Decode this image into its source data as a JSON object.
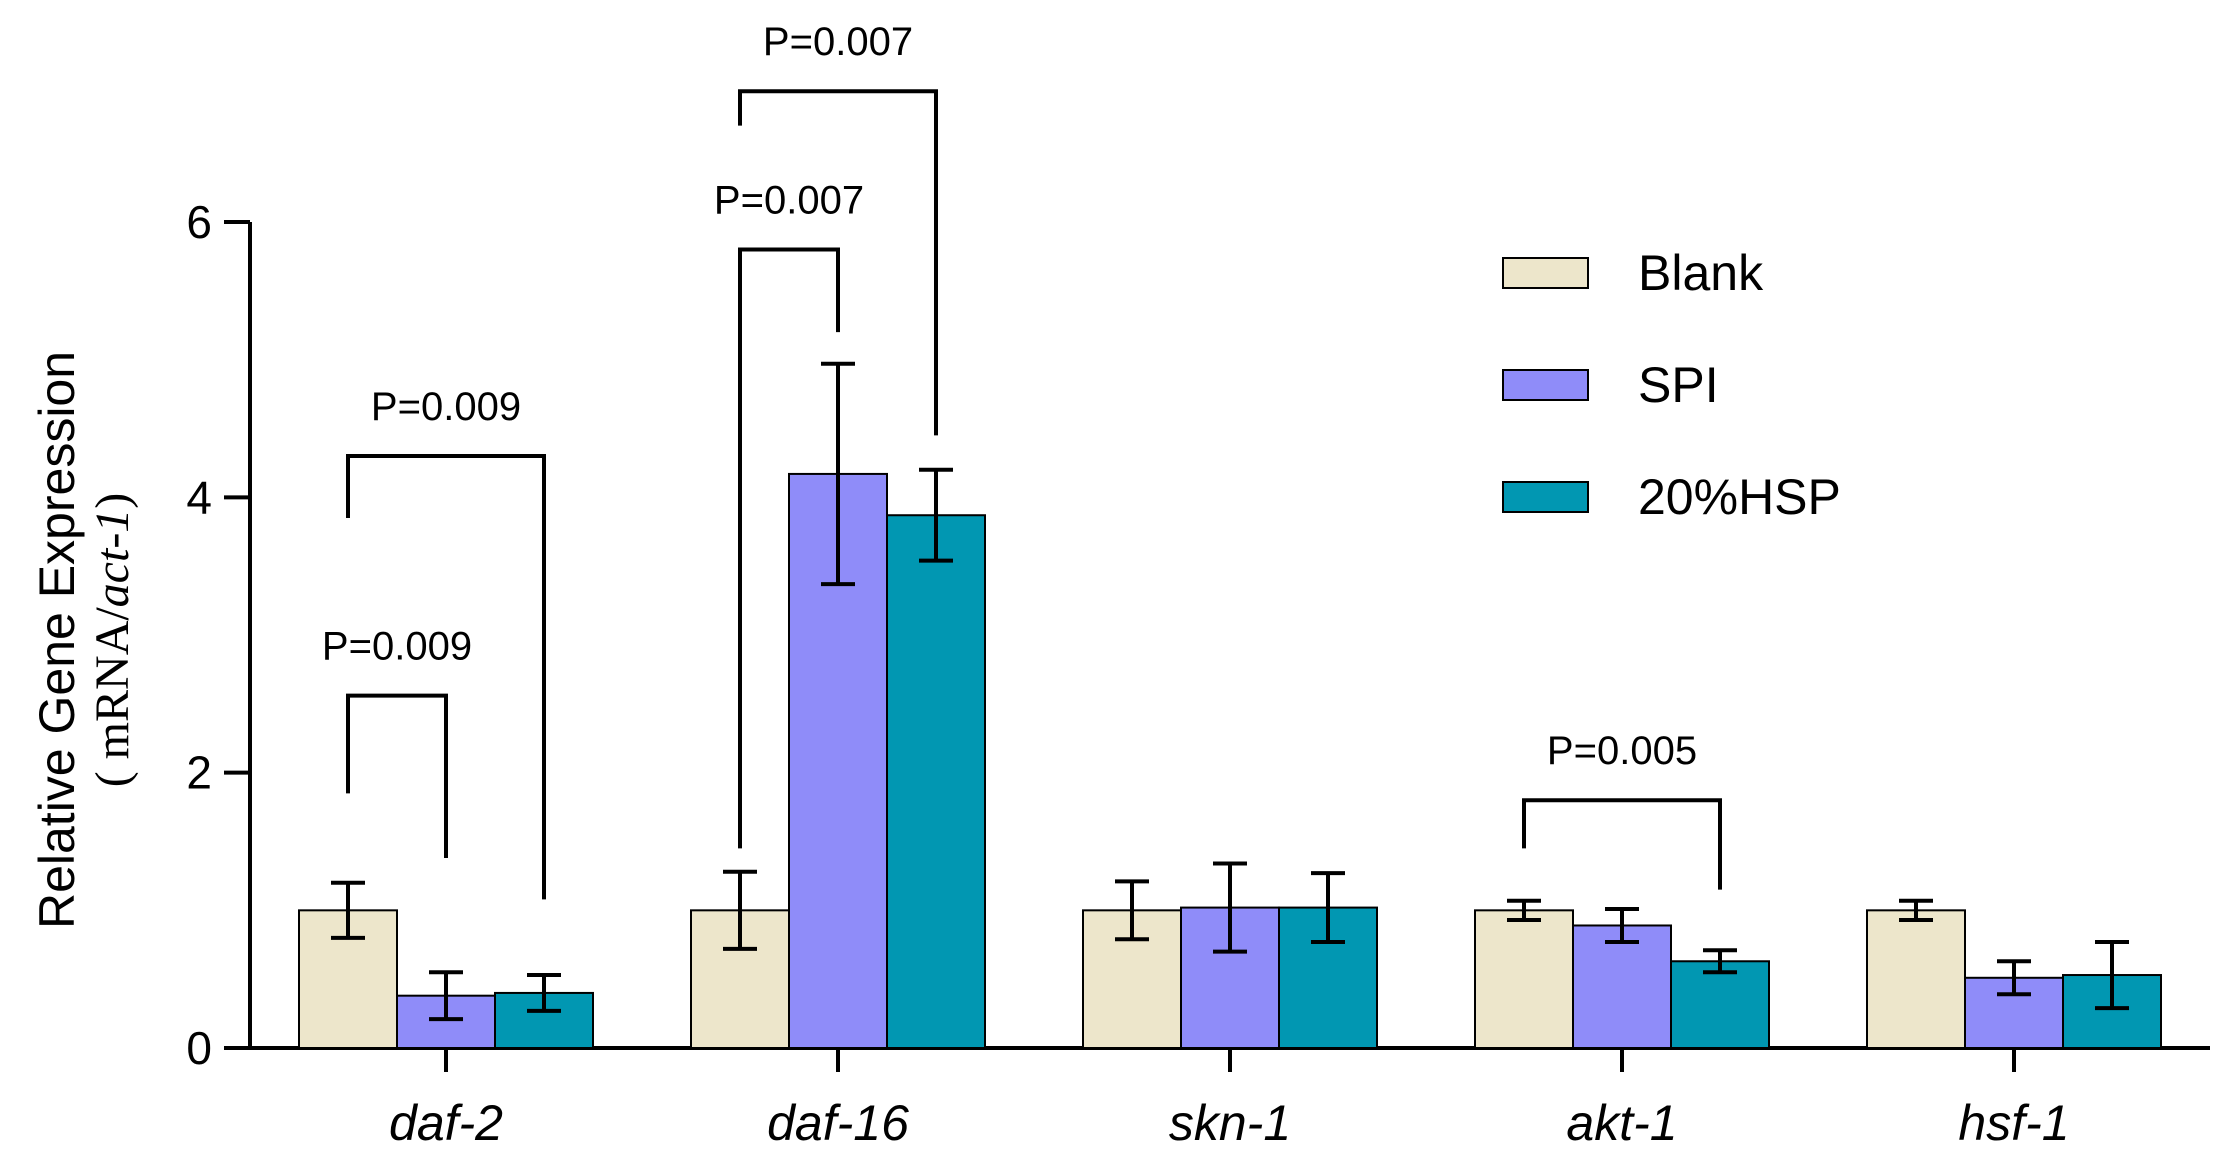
{
  "chart_data": {
    "type": "bar",
    "ylabel_line1": "Relative Gene Expression",
    "ylabel_line2_prefix": "( mRNA/",
    "ylabel_line2_italic": "act-1",
    "ylabel_line2_suffix": ")",
    "ylim": [
      0,
      6
    ],
    "yticks": [
      0,
      2,
      4,
      6
    ],
    "ytick_labels": [
      "0",
      "2",
      "4",
      "6"
    ],
    "categories": [
      "daf-2",
      "daf-16",
      "skn-1",
      "akt-1",
      "hsf-1"
    ],
    "series": [
      {
        "name": "Blank",
        "color": "#ede6cb",
        "values": [
          1.0,
          1.0,
          1.0,
          1.0,
          1.0
        ],
        "errors": [
          0.2,
          0.28,
          0.21,
          0.07,
          0.07
        ]
      },
      {
        "name": "SPI",
        "color": "#8f8cf9",
        "values": [
          0.38,
          4.17,
          1.02,
          0.89,
          0.51
        ],
        "errors": [
          0.17,
          0.8,
          0.32,
          0.12,
          0.12
        ]
      },
      {
        "name": "20%HSP",
        "color": "#0197b2",
        "values": [
          0.4,
          3.87,
          1.02,
          0.63,
          0.53
        ],
        "errors": [
          0.13,
          0.33,
          0.25,
          0.08,
          0.24
        ]
      }
    ],
    "annotations": [
      {
        "text": "P=0.009",
        "category": 0,
        "from_series": 0,
        "to_series": 1,
        "y_bracket": 2.56,
        "y_left_end": 1.85,
        "y_right_end": 1.38
      },
      {
        "text": "P=0.009",
        "category": 0,
        "from_series": 0,
        "to_series": 2,
        "y_bracket": 4.3,
        "y_left_end": 3.85,
        "y_right_end": 1.08
      },
      {
        "text": "P=0.007",
        "category": 1,
        "from_series": 0,
        "to_series": 1,
        "y_bracket": 5.8,
        "y_left_end": 1.45,
        "y_right_end": 5.2
      },
      {
        "text": "P=0.007",
        "category": 1,
        "from_series": 0,
        "to_series": 2,
        "y_bracket": 6.95,
        "y_left_end": 6.7,
        "y_right_end": 4.45
      },
      {
        "text": "P=0.005",
        "category": 3,
        "from_series": 0,
        "to_series": 2,
        "y_bracket": 1.8,
        "y_left_end": 1.45,
        "y_right_end": 1.15
      }
    ],
    "legend_position": "top-right",
    "grid": false
  }
}
